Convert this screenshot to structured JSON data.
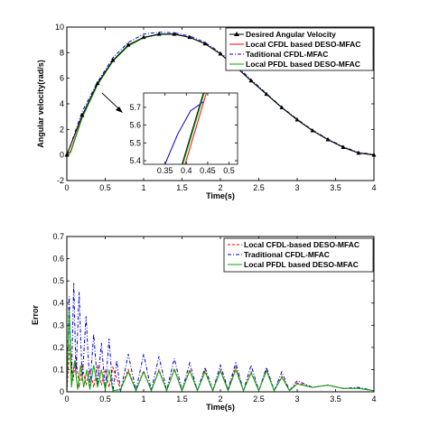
{
  "chart_data": [
    {
      "type": "line",
      "xlabel": "Time(s)",
      "ylabel": "Angular velocity(rad/s)",
      "xlim": [
        0,
        4
      ],
      "ylim": [
        -2,
        10
      ],
      "xticks": [
        "0",
        "0.5",
        "1",
        "1.5",
        "2",
        "2.5",
        "3",
        "3.5",
        "4"
      ],
      "yticks": [
        "-2",
        "0",
        "2",
        "4",
        "6",
        "8",
        "10"
      ],
      "legend_position": "top-right",
      "series": [
        {
          "name": "Desired Angular Velocity",
          "color": "#000000",
          "style": "solid-triangle-markers",
          "x": [
            0,
            0.2,
            0.4,
            0.6,
            0.8,
            1.0,
            1.2,
            1.4,
            1.6,
            1.8,
            2.0,
            2.2,
            2.4,
            2.6,
            2.8,
            3.0,
            3.2,
            3.4,
            3.6,
            3.8,
            4.0
          ],
          "y": [
            0,
            3.1,
            5.6,
            7.4,
            8.6,
            9.2,
            9.45,
            9.45,
            9.2,
            8.7,
            7.9,
            6.9,
            5.8,
            4.75,
            3.7,
            2.75,
            1.9,
            1.2,
            0.6,
            0.15,
            0
          ]
        },
        {
          "name": "Local CFDL based DESO-MFAC",
          "color": "#ff0000",
          "style": "solid",
          "x": [
            0,
            0.05,
            0.2,
            0.4,
            0.6,
            0.8,
            1.0,
            1.2,
            1.4,
            1.6,
            1.8,
            2.0,
            2.2,
            2.4,
            2.6,
            2.8,
            3.0,
            3.2,
            3.4,
            3.6,
            3.8,
            4.0
          ],
          "y": [
            0,
            0.3,
            3.0,
            5.52,
            7.35,
            8.55,
            9.18,
            9.43,
            9.44,
            9.2,
            8.7,
            7.9,
            6.9,
            5.8,
            4.75,
            3.7,
            2.75,
            1.9,
            1.2,
            0.6,
            0.15,
            0
          ]
        },
        {
          "name": "Taditional CFDL-MFAC",
          "color": "#0000cc",
          "style": "dash-dot",
          "x": [
            0,
            0.05,
            0.2,
            0.4,
            0.6,
            0.8,
            1.0,
            1.2,
            1.4,
            1.6,
            1.8,
            2.0,
            2.2,
            2.4,
            2.6,
            2.8,
            3.0,
            3.2,
            3.4,
            3.6,
            3.8,
            4.0
          ],
          "y": [
            0,
            0.8,
            3.4,
            5.7,
            7.6,
            8.8,
            9.45,
            9.6,
            9.55,
            9.3,
            8.8,
            8.0,
            7.0,
            5.9,
            4.8,
            3.75,
            2.8,
            1.95,
            1.25,
            0.65,
            0.2,
            0.05
          ]
        },
        {
          "name": "Local PFDL based DESO-MFAC",
          "color": "#00aa00",
          "style": "solid",
          "x": [
            0,
            0.05,
            0.2,
            0.4,
            0.6,
            0.8,
            1.0,
            1.2,
            1.4,
            1.6,
            1.8,
            2.0,
            2.2,
            2.4,
            2.6,
            2.8,
            3.0,
            3.2,
            3.4,
            3.6,
            3.8,
            4.0
          ],
          "y": [
            0,
            0.2,
            2.9,
            5.48,
            7.32,
            8.52,
            9.16,
            9.42,
            9.43,
            9.19,
            8.69,
            7.89,
            6.9,
            5.8,
            4.75,
            3.7,
            2.75,
            1.9,
            1.2,
            0.6,
            0.15,
            0
          ]
        }
      ],
      "inset": {
        "xlim": [
          0.3,
          0.52
        ],
        "ylim": [
          5.38,
          5.78
        ],
        "xticks": [
          "0.35",
          "0.4",
          "0.45",
          "0.5"
        ],
        "yticks": [
          "5.4",
          "5.5",
          "5.6",
          "5.7"
        ],
        "series": [
          {
            "name": "Desired Angular Velocity",
            "color": "#000000",
            "x": [
              0.39,
              0.44
            ],
            "y": [
              5.38,
              5.78
            ]
          },
          {
            "name": "Local CFDL based DESO-MFAC",
            "color": "#ff0000",
            "x": [
              0.397,
              0.447
            ],
            "y": [
              5.38,
              5.78
            ]
          },
          {
            "name": "Taditional CFDL-MFAC",
            "color": "#0000cc",
            "x": [
              0.35,
              0.38,
              0.41,
              0.44
            ],
            "y": [
              5.38,
              5.55,
              5.68,
              5.73
            ]
          },
          {
            "name": "Local PFDL based DESO-MFAC",
            "color": "#00aa00",
            "x": [
              0.392,
              0.442
            ],
            "y": [
              5.38,
              5.78
            ]
          }
        ]
      }
    },
    {
      "type": "line",
      "xlabel": "Time(s)",
      "ylabel": "Error",
      "xlim": [
        0,
        4
      ],
      "ylim": [
        0,
        0.7
      ],
      "xticks": [
        "0",
        "0.5",
        "1",
        "1.5",
        "2",
        "2.5",
        "3",
        "3.5",
        "4"
      ],
      "yticks": [
        "0",
        "0.1",
        "0.2",
        "0.3",
        "0.4",
        "0.5",
        "0.6",
        "0.7"
      ],
      "legend_position": "top-right",
      "series": [
        {
          "name": "Local CFDL-based DESO-MFAC",
          "color": "#ff0000",
          "style": "dashed",
          "x": [
            0,
            0.04,
            0.08,
            0.12,
            0.16,
            0.2,
            0.25,
            0.3,
            0.35,
            0.4,
            0.45,
            0.5,
            0.55,
            0.6,
            0.7,
            0.8,
            0.9,
            1.0,
            1.1,
            1.2,
            1.3,
            1.4,
            1.5,
            1.6,
            1.7,
            1.8,
            1.9,
            2.0,
            2.1,
            2.2,
            2.3,
            2.4,
            2.5,
            2.6,
            2.7,
            2.8,
            2.9,
            3.0,
            3.2,
            3.4,
            3.6,
            3.8,
            4.0
          ],
          "y": [
            0,
            0.22,
            0.05,
            0.16,
            0.02,
            0.12,
            0.03,
            0.1,
            0.02,
            0.12,
            0.03,
            0.1,
            0.02,
            0.11,
            0.01,
            0.1,
            0.005,
            0.095,
            0.005,
            0.1,
            0.005,
            0.105,
            0.005,
            0.1,
            0.005,
            0.095,
            0.005,
            0.1,
            0.01,
            0.11,
            0.005,
            0.09,
            0.005,
            0.1,
            0.005,
            0.07,
            0.005,
            0.04,
            0.02,
            0.03,
            0.015,
            0.015,
            0.005
          ]
        },
        {
          "name": "Traditional CFDL-MFAC",
          "color": "#0000cc",
          "style": "dash-dot",
          "x": [
            0,
            0.03,
            0.06,
            0.09,
            0.12,
            0.16,
            0.2,
            0.25,
            0.3,
            0.35,
            0.4,
            0.45,
            0.5,
            0.55,
            0.6,
            0.65,
            0.7,
            0.8,
            0.9,
            1.0,
            1.1,
            1.2,
            1.3,
            1.4,
            1.5,
            1.6,
            1.7,
            1.8,
            1.9,
            2.0,
            2.1,
            2.2,
            2.3,
            2.4,
            2.5,
            2.6,
            2.7,
            2.8,
            2.9,
            3.0,
            3.2,
            3.4,
            3.6,
            3.8,
            4.0
          ],
          "y": [
            0,
            0.43,
            0.05,
            0.49,
            0.08,
            0.45,
            0.05,
            0.34,
            0.02,
            0.26,
            0.03,
            0.22,
            0.01,
            0.24,
            0.0,
            0.14,
            0.0,
            0.17,
            0.005,
            0.17,
            0.005,
            0.16,
            0.005,
            0.15,
            0.005,
            0.13,
            0.005,
            0.11,
            0.005,
            0.12,
            0.01,
            0.13,
            0.005,
            0.12,
            0.005,
            0.11,
            0.005,
            0.09,
            0.005,
            0.05,
            0.02,
            0.03,
            0.015,
            0.02,
            0.005
          ]
        },
        {
          "name": "Local PFDL based DESO-MFAC",
          "color": "#00aa00",
          "style": "solid",
          "x": [
            0,
            0.03,
            0.06,
            0.1,
            0.14,
            0.18,
            0.22,
            0.26,
            0.3,
            0.35,
            0.4,
            0.45,
            0.5,
            0.55,
            0.6,
            0.7,
            0.8,
            0.9,
            1.0,
            1.1,
            1.2,
            1.3,
            1.4,
            1.5,
            1.6,
            1.7,
            1.8,
            1.9,
            2.0,
            2.1,
            2.2,
            2.3,
            2.4,
            2.5,
            2.6,
            2.7,
            2.8,
            2.9,
            3.0,
            3.2,
            3.4,
            3.6,
            3.8,
            4.0
          ],
          "y": [
            0,
            0.37,
            0.02,
            0.14,
            0.01,
            0.12,
            0.02,
            0.1,
            0.01,
            0.12,
            0.02,
            0.1,
            0.01,
            0.1,
            0.005,
            0.01,
            0.09,
            0.005,
            0.09,
            0.005,
            0.095,
            0.005,
            0.1,
            0.005,
            0.095,
            0.005,
            0.09,
            0.005,
            0.095,
            0.005,
            0.1,
            0.005,
            0.085,
            0.005,
            0.095,
            0.005,
            0.065,
            0.005,
            0.035,
            0.02,
            0.03,
            0.015,
            0.015,
            0.005
          ]
        }
      ]
    }
  ]
}
